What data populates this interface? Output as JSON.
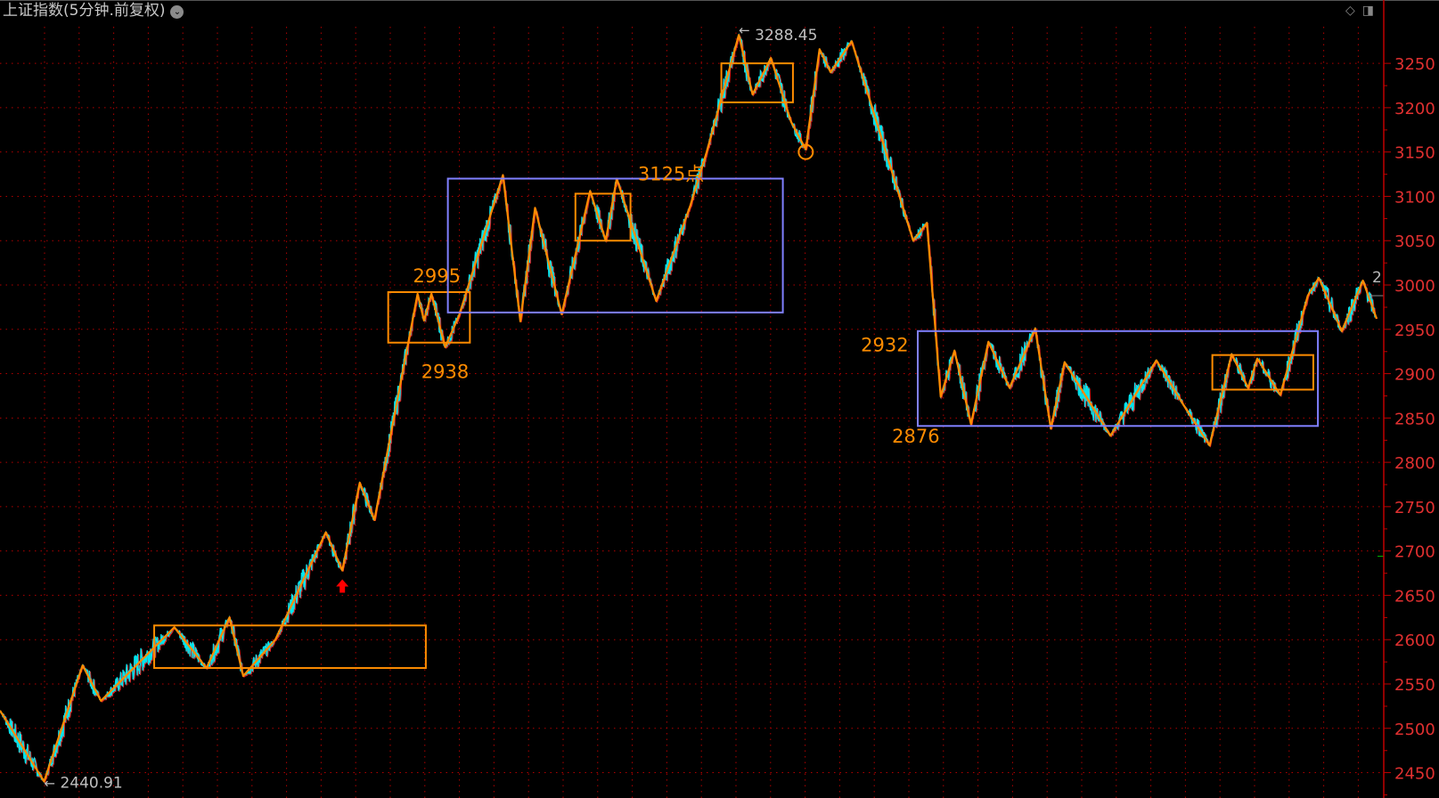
{
  "title": "上证指数(5分钟.前复权)",
  "header_icons": [
    "dropdown-chevron-icon",
    "diamond-icon",
    "panel-toggle-icon"
  ],
  "colors": {
    "background": "#000000",
    "grid": "#b00000",
    "axis": "#c00000",
    "axis_label": "#e03030",
    "price_line": "#00e5ee",
    "zigzag": "#ff8c00",
    "range_box_purple": "#8080ff",
    "range_box_orange": "#ff8c00",
    "annotation": "#ff8c00",
    "extreme_label": "#c0c0c0",
    "arrow": "#ff0000"
  },
  "chart_data": {
    "type": "line",
    "title": "上证指数(5分钟.前复权)",
    "xlabel": "",
    "ylabel": "",
    "ylim": [
      2435,
      3300
    ],
    "y_ticks": [
      "3250",
      "3200",
      "3150",
      "3100",
      "3050",
      "3000",
      "2950",
      "2900",
      "2850",
      "2800",
      "2750",
      "2700",
      "2650",
      "2600",
      "2550",
      "2500",
      "2450"
    ],
    "grid": true,
    "zigzag": [
      [
        0,
        2520
      ],
      [
        48,
        2440
      ],
      [
        90,
        2571
      ],
      [
        110,
        2531
      ],
      [
        190,
        2614
      ],
      [
        225,
        2568
      ],
      [
        250,
        2625
      ],
      [
        265,
        2559
      ],
      [
        300,
        2600
      ],
      [
        355,
        2721
      ],
      [
        373,
        2678
      ],
      [
        392,
        2777
      ],
      [
        408,
        2735
      ],
      [
        455,
        2990
      ],
      [
        462,
        2960
      ],
      [
        470,
        2990
      ],
      [
        485,
        2930
      ],
      [
        500,
        2965
      ],
      [
        548,
        3124
      ],
      [
        567,
        2959
      ],
      [
        583,
        3087
      ],
      [
        612,
        2967
      ],
      [
        643,
        3106
      ],
      [
        660,
        3050
      ],
      [
        672,
        3120
      ],
      [
        715,
        2982
      ],
      [
        752,
        3089
      ],
      [
        770,
        3150
      ],
      [
        805,
        3282
      ],
      [
        820,
        3215
      ],
      [
        840,
        3256
      ],
      [
        862,
        3184
      ],
      [
        878,
        3153
      ],
      [
        893,
        3266
      ],
      [
        905,
        3240
      ],
      [
        928,
        3275
      ],
      [
        995,
        3050
      ],
      [
        1010,
        3070
      ],
      [
        1025,
        2874
      ],
      [
        1040,
        2926
      ],
      [
        1058,
        2843
      ],
      [
        1077,
        2936
      ],
      [
        1100,
        2884
      ],
      [
        1128,
        2951
      ],
      [
        1145,
        2838
      ],
      [
        1160,
        2913
      ],
      [
        1210,
        2830
      ],
      [
        1260,
        2915
      ],
      [
        1290,
        2864
      ],
      [
        1318,
        2819
      ],
      [
        1342,
        2922
      ],
      [
        1360,
        2884
      ],
      [
        1370,
        2917
      ],
      [
        1395,
        2876
      ],
      [
        1425,
        2988
      ],
      [
        1437,
        3008
      ],
      [
        1462,
        2948
      ],
      [
        1485,
        3005
      ],
      [
        1500,
        2962
      ]
    ],
    "boxes": [
      {
        "color": "orange",
        "bars": [
          168,
          464
        ],
        "prices": [
          2568,
          2616
        ]
      },
      {
        "color": "orange",
        "bars": [
          423,
          512
        ],
        "prices": [
          2935,
          2992
        ]
      },
      {
        "color": "purple",
        "bars": [
          488,
          853
        ],
        "prices": [
          2969,
          3120
        ]
      },
      {
        "color": "orange",
        "bars": [
          627,
          687
        ],
        "prices": [
          3050,
          3103
        ]
      },
      {
        "color": "orange",
        "bars": [
          786,
          864
        ],
        "prices": [
          3206,
          3250
        ]
      },
      {
        "color": "purple",
        "bars": [
          1000,
          1436
        ],
        "prices": [
          2841,
          2948
        ]
      },
      {
        "color": "orange",
        "bars": [
          1321,
          1431
        ],
        "prices": [
          2882,
          2921
        ]
      }
    ],
    "annotations": [
      {
        "text": "2995",
        "bar": 450,
        "price": 3003
      },
      {
        "text": "2938",
        "bar": 459,
        "price": 2895
      },
      {
        "text": "3125点",
        "bar": 695,
        "price": 3118
      },
      {
        "text": "2932",
        "bar": 938,
        "price": 2925
      },
      {
        "text": "2876",
        "bar": 972,
        "price": 2822
      }
    ],
    "extremes": [
      {
        "text": "3288.45",
        "bar": 805,
        "price": 3288.45
      },
      {
        "text": "2440.91",
        "bar": 48,
        "price": 2440.91
      }
    ],
    "marker_circle": {
      "bar": 878,
      "price": 3150
    },
    "marker_up_arrow": {
      "bar": 373,
      "price": 2660
    },
    "last_label": "2"
  }
}
